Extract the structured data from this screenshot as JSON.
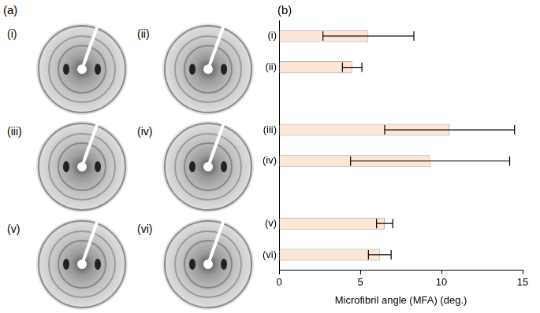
{
  "panel_labels": [
    "(a)",
    "(b)"
  ],
  "images": {
    "labels": [
      "(i)",
      "(ii)",
      "(iii)",
      "(iv)",
      "(v)",
      "(vi)"
    ]
  },
  "chart_data": {
    "type": "bar",
    "orientation": "horizontal",
    "categories": [
      "(i)",
      "(ii)",
      null,
      "(iii)",
      "(iv)",
      null,
      "(v)",
      "(vi)"
    ],
    "values": [
      5.5,
      4.5,
      null,
      10.5,
      9.3,
      null,
      6.5,
      6.2
    ],
    "errors": [
      2.8,
      0.6,
      null,
      4.0,
      4.9,
      null,
      0.5,
      0.7
    ],
    "x_label": "Microfibril angle (MFA) (deg.)",
    "xlim": [
      0,
      15
    ],
    "xticks": [
      0,
      5,
      10,
      15
    ],
    "color": "#fde6d6",
    "grid": false
  }
}
